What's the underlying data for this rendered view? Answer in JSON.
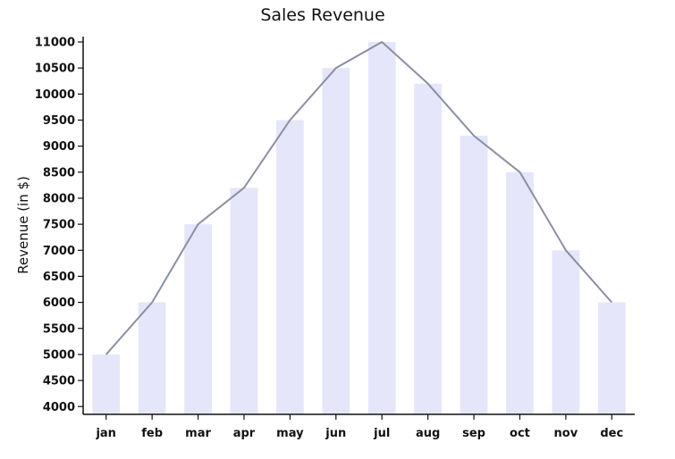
{
  "chart_data": {
    "type": "bar",
    "title": "Sales Revenue",
    "xlabel": "",
    "ylabel": "Revenue (in $)",
    "categories": [
      "jan",
      "feb",
      "mar",
      "apr",
      "may",
      "jun",
      "jul",
      "aug",
      "sep",
      "oct",
      "nov",
      "dec"
    ],
    "series": [
      {
        "type": "bar",
        "values": [
          5000,
          6000,
          7500,
          8200,
          9500,
          10500,
          11000,
          10200,
          9200,
          8500,
          7000,
          6000
        ]
      },
      {
        "type": "line",
        "values": [
          5000,
          6000,
          7500,
          8200,
          9500,
          10500,
          11000,
          10200,
          9200,
          8500,
          7000,
          6000
        ]
      }
    ],
    "ylim": [
      3850,
      11000
    ],
    "yticks": [
      4000,
      4500,
      5000,
      5500,
      6000,
      6500,
      7000,
      7500,
      8000,
      8500,
      9000,
      9500,
      10000,
      10500,
      11000
    ],
    "grid": false,
    "colors": {
      "bar": "#e6e6fa",
      "line": "#8a8fa3",
      "axis": "#111111"
    }
  }
}
